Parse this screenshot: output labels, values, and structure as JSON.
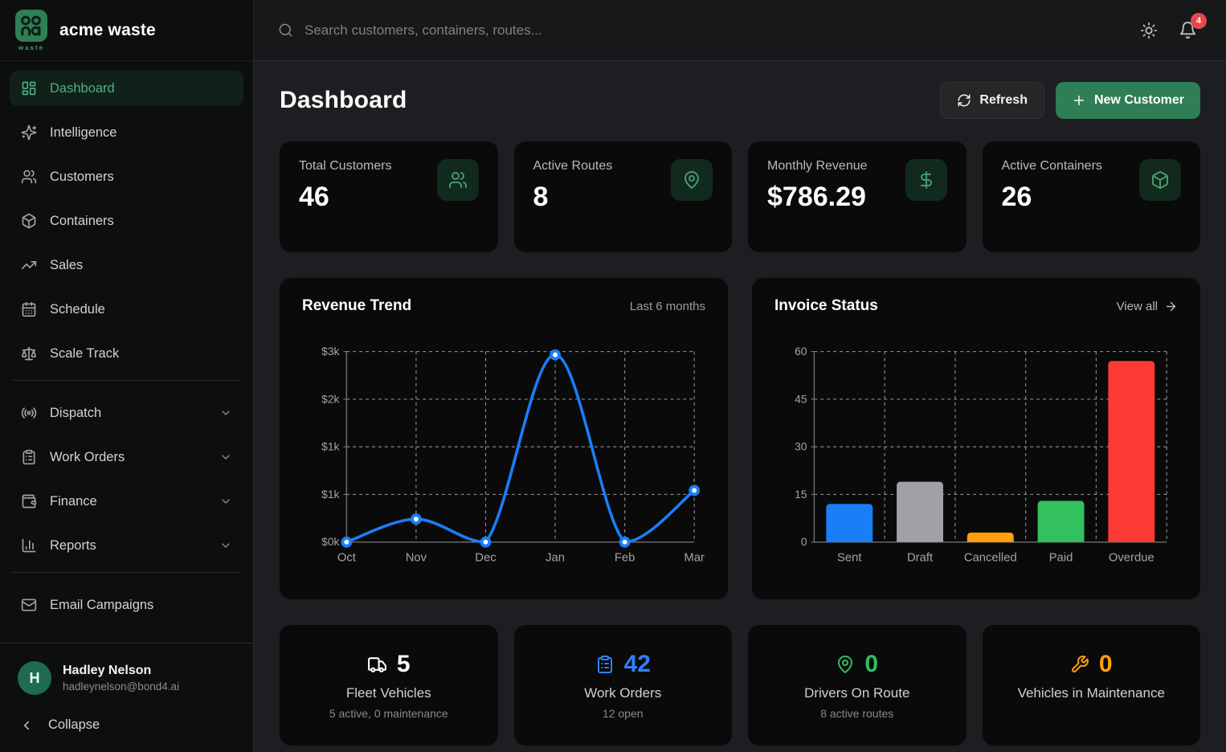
{
  "brand": {
    "name": "acme waste",
    "logo_sub": "waste",
    "accent": "#2f7e55"
  },
  "topbar": {
    "search_placeholder": "Search customers, containers, routes...",
    "notification_count": "4",
    "badge_color": "#e5484d"
  },
  "sidebar": {
    "items": [
      {
        "label": "Dashboard",
        "icon": "dashboard-grid",
        "active": true
      },
      {
        "label": "Intelligence",
        "icon": "sparkles"
      },
      {
        "label": "Customers",
        "icon": "users"
      },
      {
        "label": "Containers",
        "icon": "package"
      },
      {
        "label": "Sales",
        "icon": "trending-up"
      },
      {
        "label": "Schedule",
        "icon": "calendar"
      },
      {
        "label": "Scale Track",
        "icon": "scale"
      }
    ],
    "groups": [
      {
        "label": "Dispatch",
        "icon": "radio-broadcast",
        "expandable": true
      },
      {
        "label": "Work Orders",
        "icon": "clipboard",
        "expandable": true
      },
      {
        "label": "Finance",
        "icon": "wallet",
        "expandable": true
      },
      {
        "label": "Reports",
        "icon": "bar-chart",
        "expandable": true
      }
    ],
    "secondary": [
      {
        "label": "Email Campaigns",
        "icon": "mail"
      }
    ],
    "user": {
      "initial": "H",
      "name": "Hadley Nelson",
      "email": "hadleynelson@bond4.ai"
    },
    "collapse_label": "Collapse"
  },
  "header": {
    "title": "Dashboard",
    "refresh_label": "Refresh",
    "new_customer_label": "New Customer"
  },
  "stats": [
    {
      "label": "Total Customers",
      "value": "46",
      "icon": "users"
    },
    {
      "label": "Active Routes",
      "value": "8",
      "icon": "map-pin"
    },
    {
      "label": "Monthly Revenue",
      "value": "$786.29",
      "icon": "dollar"
    },
    {
      "label": "Active Containers",
      "value": "26",
      "icon": "package"
    }
  ],
  "chart_data": [
    {
      "type": "line",
      "title": "Revenue Trend",
      "subtitle": "Last 6 months",
      "x": [
        "Oct",
        "Nov",
        "Dec",
        "Jan",
        "Feb",
        "Mar"
      ],
      "values": [
        0,
        350,
        0,
        2850,
        0,
        786
      ],
      "ylim": [
        0,
        2900
      ],
      "y_ticks": [
        {
          "value": 0,
          "label": "$0k"
        },
        {
          "value": 725,
          "label": "$1k"
        },
        {
          "value": 1450,
          "label": "$1k"
        },
        {
          "value": 2175,
          "label": "$2k"
        },
        {
          "value": 2900,
          "label": "$3k"
        }
      ],
      "line_color": "#1a7ef7",
      "point_fill": "#ffffff",
      "grid": true,
      "legend": "none"
    },
    {
      "type": "bar",
      "title": "Invoice Status",
      "action_label": "View all",
      "categories": [
        "Sent",
        "Draft",
        "Cancelled",
        "Paid",
        "Overdue"
      ],
      "values": [
        12,
        19,
        3,
        13,
        57
      ],
      "colors": [
        "#1a7ef7",
        "#9fa1a4",
        "#ff9f0a",
        "#32c15c",
        "#fb3b33"
      ],
      "ylim": [
        0,
        60
      ],
      "y_ticks": [
        {
          "value": 0,
          "label": "0"
        },
        {
          "value": 15,
          "label": "15"
        },
        {
          "value": 30,
          "label": "30"
        },
        {
          "value": 45,
          "label": "45"
        },
        {
          "value": 60,
          "label": "60"
        }
      ],
      "grid": true,
      "legend": "none"
    }
  ],
  "bottom_stats": [
    {
      "icon": "truck",
      "value": "5",
      "color": "#ffffff",
      "label": "Fleet Vehicles",
      "sub": "5 active, 0 maintenance"
    },
    {
      "icon": "clipboard",
      "value": "42",
      "color": "#2f81f7",
      "label": "Work Orders",
      "sub": "12 open"
    },
    {
      "icon": "map-pin",
      "value": "0",
      "color": "#2fbf5f",
      "label": "Drivers On Route",
      "sub": "8 active routes"
    },
    {
      "icon": "wrench",
      "value": "0",
      "color": "#ff9f0a",
      "label": "Vehicles in Maintenance",
      "sub": ""
    }
  ]
}
